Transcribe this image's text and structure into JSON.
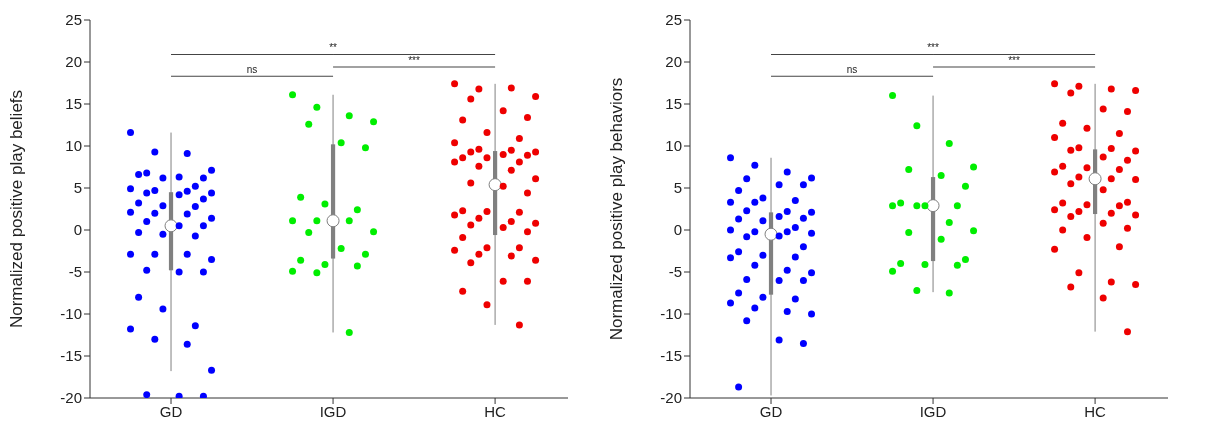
{
  "chart_data": [
    {
      "type": "box",
      "ylabel": "Normalized positive play beliefs",
      "categories": [
        "GD",
        "IGD",
        "HC"
      ],
      "ylim": [
        -20,
        25
      ],
      "yticks": [
        -20,
        -15,
        -10,
        -5,
        0,
        5,
        10,
        15,
        20,
        25
      ],
      "grid": false,
      "annotations": [
        "**",
        "ns",
        "***"
      ],
      "series": [
        {
          "type": "box",
          "color": "#808080",
          "boxes": [
            {
              "low": -16.8,
              "q1": -4.8,
              "median": 0.5,
              "q3": 4.5,
              "high": 11.6
            },
            {
              "low": -12.2,
              "q1": -3.4,
              "median": 1.1,
              "q3": 10.2,
              "high": 16.1
            },
            {
              "low": -11.3,
              "q1": -0.6,
              "median": 5.4,
              "q3": 9.4,
              "high": 17.4
            }
          ]
        },
        {
          "type": "scatter",
          "color": "#0000ff",
          "x": [
            "GD",
            "GD",
            "GD",
            "GD",
            "GD",
            "GD",
            "GD",
            "GD",
            "GD",
            "GD",
            "GD",
            "GD",
            "GD",
            "GD",
            "GD",
            "GD",
            "GD",
            "GD",
            "GD",
            "GD",
            "GD",
            "GD",
            "GD",
            "GD",
            "GD",
            "GD",
            "GD",
            "GD",
            "GD",
            "GD",
            "GD",
            "GD",
            "GD",
            "GD",
            "GD",
            "GD",
            "GD",
            "GD",
            "GD",
            "GD",
            "GD",
            "GD",
            "GD",
            "GD",
            "GD",
            "GD",
            "GD"
          ],
          "values": [
            11.6,
            9.3,
            9.1,
            7.1,
            6.8,
            6.3,
            6.2,
            6.6,
            6.2,
            5.2,
            4.9,
            4.7,
            4.6,
            4.4,
            4.4,
            4.2,
            3.7,
            3.2,
            2.9,
            2.8,
            2.1,
            2.0,
            1.9,
            1.4,
            1.0,
            0.5,
            0.5,
            -0.3,
            -0.5,
            -0.7,
            -2.9,
            -2.9,
            -2.9,
            -3.5,
            -4.8,
            -5.0,
            -5.0,
            -8.0,
            -9.4,
            -11.4,
            -11.8,
            -13.0,
            -13.6,
            -16.7,
            -19.6,
            -19.8,
            -19.8
          ]
        },
        {
          "type": "scatter",
          "color": "#00ee00",
          "x": [
            "IGD",
            "IGD",
            "IGD",
            "IGD",
            "IGD",
            "IGD",
            "IGD",
            "IGD",
            "IGD",
            "IGD",
            "IGD",
            "IGD",
            "IGD",
            "IGD",
            "IGD",
            "IGD",
            "IGD",
            "IGD",
            "IGD",
            "IGD",
            "IGD",
            "IGD",
            "IGD"
          ],
          "values": [
            16.1,
            14.6,
            13.6,
            12.9,
            12.6,
            10.4,
            9.8,
            3.9,
            3.1,
            2.4,
            1.1,
            1.1,
            1.1,
            -0.2,
            -0.3,
            -2.2,
            -2.9,
            -3.6,
            -4.1,
            -4.3,
            -4.9,
            -5.1,
            -12.2
          ]
        },
        {
          "type": "scatter",
          "color": "#ee0000",
          "x": [
            "HC",
            "HC",
            "HC",
            "HC",
            "HC",
            "HC",
            "HC",
            "HC",
            "HC",
            "HC",
            "HC",
            "HC",
            "HC",
            "HC",
            "HC",
            "HC",
            "HC",
            "HC",
            "HC",
            "HC",
            "HC",
            "HC",
            "HC",
            "HC",
            "HC",
            "HC",
            "HC",
            "HC",
            "HC",
            "HC",
            "HC",
            "HC",
            "HC",
            "HC",
            "HC",
            "HC",
            "HC",
            "HC",
            "HC",
            "HC",
            "HC",
            "HC",
            "HC",
            "HC",
            "HC",
            "HC",
            "HC",
            "HC",
            "HC",
            "HC"
          ],
          "values": [
            17.4,
            16.8,
            16.9,
            15.9,
            15.6,
            14.2,
            13.4,
            13.1,
            11.6,
            10.9,
            10.4,
            9.6,
            9.5,
            9.3,
            9.3,
            9.0,
            8.9,
            8.6,
            8.6,
            8.1,
            8.1,
            7.6,
            7.1,
            6.1,
            5.6,
            5.2,
            4.4,
            2.3,
            2.2,
            2.1,
            1.8,
            1.4,
            1.0,
            0.8,
            0.6,
            0.3,
            -0.2,
            -0.9,
            -2.1,
            -2.1,
            -2.4,
            -2.9,
            -3.1,
            -3.6,
            -3.9,
            -6.1,
            -6.1,
            -7.3,
            -8.9,
            -11.3
          ]
        }
      ]
    },
    {
      "type": "box",
      "ylabel": "Normalized positive play behaviors",
      "categories": [
        "GD",
        "IGD",
        "HC"
      ],
      "ylim": [
        -20,
        25
      ],
      "yticks": [
        -20,
        -15,
        -10,
        -5,
        0,
        5,
        10,
        15,
        20,
        25
      ],
      "grid": false,
      "annotations": [
        "***",
        "ns",
        "***"
      ],
      "series": [
        {
          "type": "box",
          "color": "#808080",
          "boxes": [
            {
              "low": -19.7,
              "q1": -7.7,
              "median": -0.5,
              "q3": 2.1,
              "high": 8.6
            },
            {
              "low": -7.4,
              "q1": -3.7,
              "median": 2.9,
              "q3": 6.3,
              "high": 16.0
            },
            {
              "low": -12.1,
              "q1": 1.9,
              "median": 6.1,
              "q3": 9.6,
              "high": 17.4
            }
          ]
        },
        {
          "type": "scatter",
          "color": "#0000ff",
          "x": [
            "GD",
            "GD",
            "GD",
            "GD",
            "GD",
            "GD",
            "GD",
            "GD",
            "GD",
            "GD",
            "GD",
            "GD",
            "GD",
            "GD",
            "GD",
            "GD",
            "GD",
            "GD",
            "GD",
            "GD",
            "GD",
            "GD",
            "GD",
            "GD",
            "GD",
            "GD",
            "GD",
            "GD",
            "GD",
            "GD",
            "GD",
            "GD",
            "GD",
            "GD",
            "GD",
            "GD",
            "GD",
            "GD",
            "GD",
            "GD",
            "GD",
            "GD",
            "GD",
            "GD",
            "GD",
            "GD",
            "GD",
            "GD"
          ],
          "values": [
            8.6,
            7.7,
            6.9,
            6.2,
            6.1,
            5.4,
            5.4,
            4.7,
            3.8,
            3.5,
            3.3,
            3.3,
            2.2,
            2.1,
            2.3,
            1.6,
            1.4,
            1.3,
            1.1,
            0.3,
            0.0,
            -0.2,
            -0.2,
            -0.4,
            -0.8,
            -0.7,
            -2.0,
            -2.6,
            -3.0,
            -3.2,
            -3.3,
            -4.2,
            -4.8,
            -5.1,
            -5.9,
            -6.0,
            -6.0,
            -7.5,
            -8.0,
            -8.2,
            -8.7,
            -9.3,
            -9.7,
            -10.0,
            -10.8,
            -13.1,
            -13.5,
            -18.7
          ]
        },
        {
          "type": "scatter",
          "color": "#00ee00",
          "x": [
            "IGD",
            "IGD",
            "IGD",
            "IGD",
            "IGD",
            "IGD",
            "IGD",
            "IGD",
            "IGD",
            "IGD",
            "IGD",
            "IGD",
            "IGD",
            "IGD",
            "IGD",
            "IGD",
            "IGD",
            "IGD",
            "IGD",
            "IGD",
            "IGD",
            "IGD",
            "IGD"
          ],
          "values": [
            16.0,
            12.4,
            10.3,
            7.5,
            7.2,
            6.5,
            5.2,
            3.2,
            2.9,
            2.9,
            2.9,
            2.9,
            0.9,
            -0.1,
            -0.3,
            -1.1,
            -3.5,
            -4.0,
            -4.1,
            -4.2,
            -4.9,
            -7.2,
            -7.5
          ]
        },
        {
          "type": "scatter",
          "color": "#ee0000",
          "x": [
            "HC",
            "HC",
            "HC",
            "HC",
            "HC",
            "HC",
            "HC",
            "HC",
            "HC",
            "HC",
            "HC",
            "HC",
            "HC",
            "HC",
            "HC",
            "HC",
            "HC",
            "HC",
            "HC",
            "HC",
            "HC",
            "HC",
            "HC",
            "HC",
            "HC",
            "HC",
            "HC",
            "HC",
            "HC",
            "HC",
            "HC",
            "HC",
            "HC",
            "HC",
            "HC",
            "HC",
            "HC",
            "HC",
            "HC",
            "HC",
            "HC",
            "HC",
            "HC",
            "HC",
            "HC",
            "HC",
            "HC"
          ],
          "values": [
            17.4,
            17.1,
            16.8,
            16.6,
            16.3,
            14.4,
            14.1,
            12.7,
            12.1,
            11.5,
            11.0,
            9.8,
            9.7,
            9.4,
            9.5,
            8.7,
            8.3,
            7.6,
            7.4,
            7.2,
            6.9,
            6.3,
            6.1,
            6.0,
            5.5,
            4.8,
            3.3,
            3.2,
            3.0,
            2.9,
            2.4,
            2.2,
            2.0,
            1.8,
            1.6,
            0.8,
            0.2,
            0.0,
            -0.9,
            -2.0,
            -2.3,
            -5.1,
            -6.2,
            -6.5,
            -6.8,
            -8.1,
            -12.1
          ]
        }
      ]
    }
  ]
}
